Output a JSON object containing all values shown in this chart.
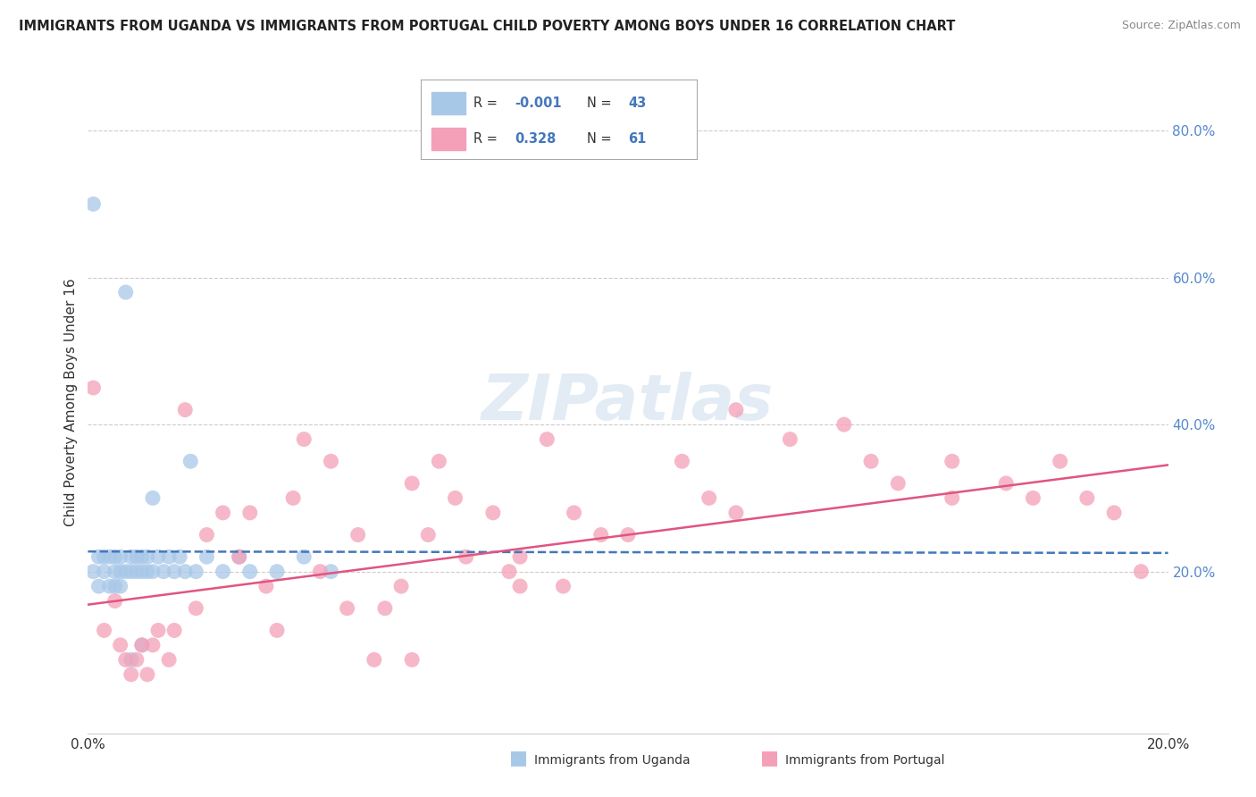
{
  "title": "IMMIGRANTS FROM UGANDA VS IMMIGRANTS FROM PORTUGAL CHILD POVERTY AMONG BOYS UNDER 16 CORRELATION CHART",
  "source": "Source: ZipAtlas.com",
  "ylabel": "Child Poverty Among Boys Under 16",
  "uganda_R": "-0.001",
  "uganda_N": "43",
  "portugal_R": "0.328",
  "portugal_N": "61",
  "xlim": [
    0.0,
    0.2
  ],
  "ylim": [
    -0.02,
    0.88
  ],
  "color_uganda": "#a8c8e8",
  "color_portugal": "#f4a0b8",
  "line_color_uganda": "#4477bb",
  "line_color_portugal": "#e05580",
  "background_color": "#ffffff",
  "grid_color": "#cccccc",
  "uganda_points_x": [
    0.001,
    0.001,
    0.002,
    0.002,
    0.003,
    0.003,
    0.004,
    0.004,
    0.005,
    0.005,
    0.005,
    0.006,
    0.006,
    0.006,
    0.007,
    0.007,
    0.008,
    0.008,
    0.009,
    0.009,
    0.01,
    0.01,
    0.011,
    0.011,
    0.012,
    0.012,
    0.013,
    0.014,
    0.015,
    0.016,
    0.017,
    0.018,
    0.019,
    0.02,
    0.022,
    0.025,
    0.028,
    0.03,
    0.035,
    0.04,
    0.045,
    0.01,
    0.008
  ],
  "uganda_points_y": [
    0.7,
    0.2,
    0.22,
    0.18,
    0.2,
    0.22,
    0.22,
    0.18,
    0.2,
    0.22,
    0.18,
    0.2,
    0.22,
    0.18,
    0.58,
    0.2,
    0.2,
    0.22,
    0.2,
    0.22,
    0.2,
    0.22,
    0.2,
    0.22,
    0.3,
    0.2,
    0.22,
    0.2,
    0.22,
    0.2,
    0.22,
    0.2,
    0.35,
    0.2,
    0.22,
    0.2,
    0.22,
    0.2,
    0.2,
    0.22,
    0.2,
    0.1,
    0.08
  ],
  "portugal_points_x": [
    0.001,
    0.003,
    0.005,
    0.006,
    0.007,
    0.008,
    0.009,
    0.01,
    0.011,
    0.012,
    0.013,
    0.015,
    0.016,
    0.018,
    0.02,
    0.022,
    0.025,
    0.028,
    0.03,
    0.033,
    0.035,
    0.038,
    0.04,
    0.043,
    0.045,
    0.048,
    0.05,
    0.053,
    0.055,
    0.058,
    0.06,
    0.063,
    0.065,
    0.068,
    0.07,
    0.075,
    0.078,
    0.08,
    0.085,
    0.09,
    0.095,
    0.1,
    0.11,
    0.115,
    0.12,
    0.13,
    0.14,
    0.15,
    0.16,
    0.17,
    0.18,
    0.185,
    0.19,
    0.195,
    0.12,
    0.145,
    0.088,
    0.16,
    0.175,
    0.08,
    0.06
  ],
  "portugal_points_y": [
    0.45,
    0.12,
    0.16,
    0.1,
    0.08,
    0.06,
    0.08,
    0.1,
    0.06,
    0.1,
    0.12,
    0.08,
    0.12,
    0.42,
    0.15,
    0.25,
    0.28,
    0.22,
    0.28,
    0.18,
    0.12,
    0.3,
    0.38,
    0.2,
    0.35,
    0.15,
    0.25,
    0.08,
    0.15,
    0.18,
    0.32,
    0.25,
    0.35,
    0.3,
    0.22,
    0.28,
    0.2,
    0.18,
    0.38,
    0.28,
    0.25,
    0.25,
    0.35,
    0.3,
    0.28,
    0.38,
    0.4,
    0.32,
    0.3,
    0.32,
    0.35,
    0.3,
    0.28,
    0.2,
    0.42,
    0.35,
    0.18,
    0.35,
    0.3,
    0.22,
    0.08
  ]
}
